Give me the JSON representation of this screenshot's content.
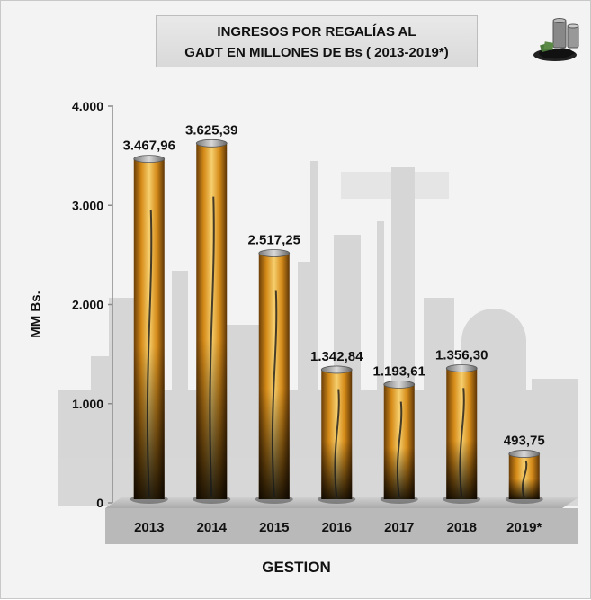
{
  "title_line1": "INGRESOS POR REGALÍAS AL",
  "title_line2": "GADT EN MILLONES DE Bs ( 2013-2019*)",
  "chart_data": {
    "type": "bar",
    "title": "INGRESOS POR REGALÍAS AL GADT EN MILLONES DE Bs ( 2013-2019*)",
    "xlabel": "GESTION",
    "ylabel": "MM Bs.",
    "categories": [
      "2013",
      "2014",
      "2015",
      "2016",
      "2017",
      "2018",
      "2019*"
    ],
    "values": [
      3467.96,
      3625.39,
      2517.25,
      1342.84,
      1193.61,
      1356.3,
      493.75
    ],
    "data_labels": [
      "3.467,96",
      "3.625,39",
      "2.517,25",
      "1.342,84",
      "1.193,61",
      "1.356,30",
      "493,75"
    ],
    "yticks": [
      0,
      1000,
      2000,
      3000,
      4000
    ],
    "ytick_labels": [
      "0",
      "1.000",
      "2.000",
      "3.000",
      "4.000"
    ],
    "ylim": [
      0,
      4000
    ],
    "grid": false,
    "legend": "none",
    "colors": {
      "bar_light": "#f2c15a",
      "bar_mid": "#d88e1c",
      "bar_dark": "#1a1a1a",
      "floor": "#bdbdbd"
    }
  }
}
